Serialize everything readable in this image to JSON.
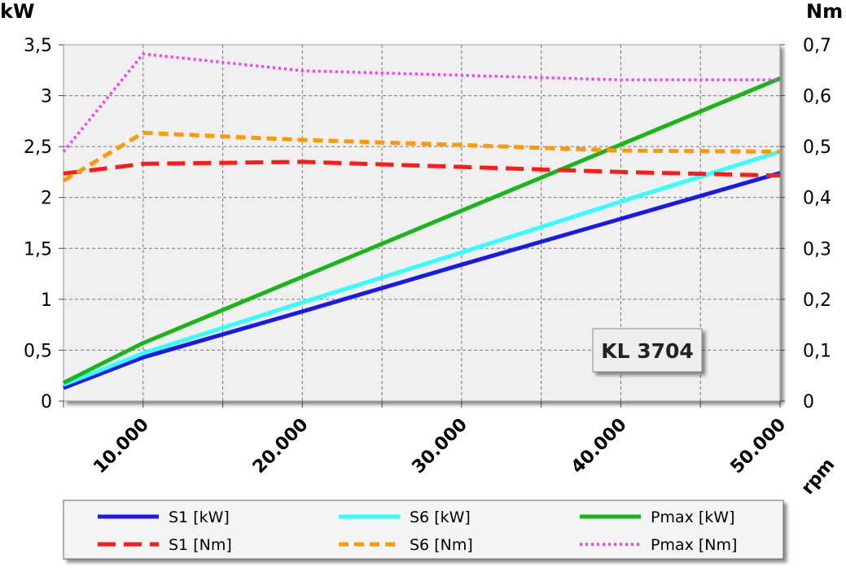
{
  "chart_data": {
    "type": "line",
    "label_box": "KL 3704",
    "xlabel": "rpm",
    "ylabel_left": "kW",
    "ylabel_right": "Nm",
    "xlim": [
      5000,
      50000
    ],
    "ylim_left": [
      0,
      3.5
    ],
    "ylim_right": [
      0,
      0.7
    ],
    "x_ticks": [
      10000,
      20000,
      30000,
      40000,
      50000
    ],
    "x_tick_labels": [
      "10.000",
      "20.000",
      "30.000",
      "40.000",
      "50.000"
    ],
    "y_left_ticks": [
      "0",
      "0,5",
      "1",
      "1,5",
      "2",
      "2,5",
      "3",
      "3,5"
    ],
    "y_right_ticks": [
      "0",
      "0,1",
      "0,2",
      "0,3",
      "0,4",
      "0,5",
      "0,6",
      "0,7"
    ],
    "grid": true,
    "legend_position": "bottom",
    "x": [
      5000,
      10000,
      20000,
      30000,
      40000,
      50000
    ],
    "series": [
      {
        "name": "S1 [kW]",
        "axis": "left",
        "color": "#1a1ae6",
        "style": "solid",
        "values": [
          0.13,
          0.43,
          0.88,
          1.34,
          1.79,
          2.24
        ]
      },
      {
        "name": "S6 [kW]",
        "axis": "left",
        "color": "#33ffff",
        "style": "solid",
        "values": [
          0.16,
          0.47,
          0.97,
          1.46,
          1.96,
          2.45
        ]
      },
      {
        "name": "Pmax [kW]",
        "axis": "left",
        "color": "#19b519",
        "style": "solid",
        "values": [
          0.18,
          0.57,
          1.22,
          1.87,
          2.52,
          3.17
        ]
      },
      {
        "name": "S1 [Nm]",
        "axis": "right",
        "color": "#ff1a1a",
        "style": "longdash",
        "values": [
          0.447,
          0.466,
          0.47,
          0.46,
          0.45,
          0.443
        ]
      },
      {
        "name": "S6 [Nm]",
        "axis": "right",
        "color": "#ff9900",
        "style": "dash",
        "values": [
          0.433,
          0.527,
          0.513,
          0.503,
          0.492,
          0.49
        ]
      },
      {
        "name": "Pmax [Nm]",
        "axis": "right",
        "color": "#ff33ff",
        "style": "dot",
        "values": [
          0.49,
          0.682,
          0.649,
          0.64,
          0.631,
          0.631
        ]
      }
    ]
  }
}
